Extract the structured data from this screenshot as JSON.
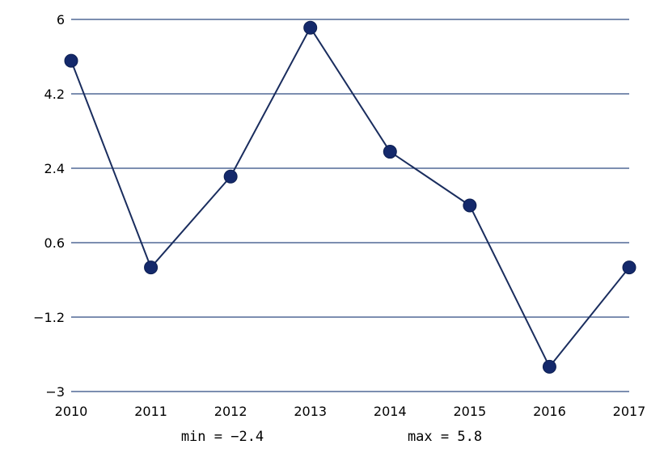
{
  "chart_data": {
    "type": "line",
    "x": [
      "2010",
      "2011",
      "2012",
      "2013",
      "2014",
      "2015",
      "2016",
      "2017"
    ],
    "series": [
      {
        "values": [
          5.0,
          0.0,
          2.2,
          5.8,
          2.8,
          1.5,
          -2.4,
          0.0
        ]
      }
    ],
    "ylim": [
      -3,
      6
    ],
    "yticks": [
      "6",
      "4.2",
      "2.4",
      "0.6",
      "-1.2",
      "-3"
    ],
    "xticks": [
      "2010",
      "2011",
      "2012",
      "2013",
      "2014",
      "2015",
      "2016",
      "2017"
    ],
    "grid": "horizontal",
    "colors": {
      "line": "#1a2d5e",
      "marker": "#14296b",
      "grid": "#2d4a80"
    }
  },
  "annotations": {
    "min_label": "min = −2.4",
    "max_label": "max = 5.8"
  }
}
